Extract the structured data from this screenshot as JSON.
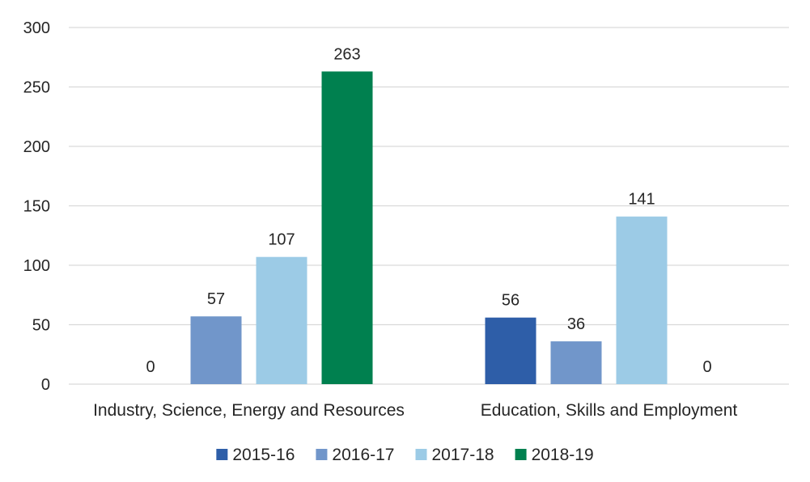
{
  "chart_data": {
    "type": "bar",
    "categories": [
      "Industry, Science, Energy and Resources",
      "Education, Skills and Employment"
    ],
    "series": [
      {
        "name": "2015-16",
        "values": [
          0,
          56
        ],
        "color": "#2e5ea8"
      },
      {
        "name": "2016-17",
        "values": [
          57,
          36
        ],
        "color": "#7196ca"
      },
      {
        "name": "2017-18",
        "values": [
          107,
          141
        ],
        "color": "#9ccbe6"
      },
      {
        "name": "2018-19",
        "values": [
          263,
          0
        ],
        "color": "#00804f"
      }
    ],
    "ylim": [
      0,
      300
    ],
    "yticks": [
      0,
      50,
      100,
      150,
      200,
      250,
      300
    ],
    "grid": true,
    "legend_position": "bottom",
    "data_labels": true
  }
}
